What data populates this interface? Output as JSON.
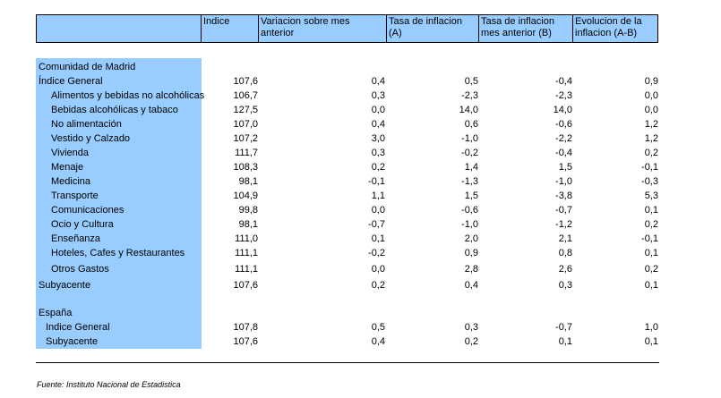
{
  "header": {
    "col0": "",
    "col1": "Indice",
    "col2": "Variacion sobre mes anterior",
    "col3": "Tasa de inflacion (A)",
    "col4": "Tasa de inflacion\nmes anterior (B)",
    "col5": "Evolucion de la\ninflacion (A-B)"
  },
  "madrid": {
    "title": "Comunidad de Madrid",
    "rows": [
      {
        "label": "Índice General",
        "v1": "107,6",
        "v2": "0,4",
        "v3": "0,5",
        "v4": "-0,4",
        "v5": "0,9"
      },
      {
        "label": "Alimentos y bebidas no alcohólicas",
        "v1": "106,7",
        "v2": "0,3",
        "v3": "-2,3",
        "v4": "-2,3",
        "v5": "0,0"
      },
      {
        "label": "Bebidas alcohólicas y tabaco",
        "v1": "127,5",
        "v2": "0,0",
        "v3": "14,0",
        "v4": "14,0",
        "v5": "0,0"
      },
      {
        "label": "No alimentación",
        "v1": "107,0",
        "v2": "0,4",
        "v3": "0,6",
        "v4": "-0,6",
        "v5": "1,2"
      },
      {
        "label": "Vestido y Calzado",
        "v1": "107,2",
        "v2": "3,0",
        "v3": "-1,0",
        "v4": "-2,2",
        "v5": "1,2"
      },
      {
        "label": "Vivienda",
        "v1": "111,7",
        "v2": "0,3",
        "v3": "-0,2",
        "v4": "-0,4",
        "v5": "0,2"
      },
      {
        "label": "Menaje",
        "v1": "108,3",
        "v2": "0,2",
        "v3": "1,4",
        "v4": "1,5",
        "v5": "-0,1"
      },
      {
        "label": "Medicina",
        "v1": "98,1",
        "v2": "-0,1",
        "v3": "-1,3",
        "v4": "-1,0",
        "v5": "-0,3"
      },
      {
        "label": "Transporte",
        "v1": "104,9",
        "v2": "1,1",
        "v3": "1,5",
        "v4": "-3,8",
        "v5": "5,3"
      },
      {
        "label": "Comunicaciones",
        "v1": "99,8",
        "v2": "0,0",
        "v3": "-0,6",
        "v4": "-0,7",
        "v5": "0,1"
      },
      {
        "label": "Ocio y Cultura",
        "v1": "98,1",
        "v2": "-0,7",
        "v3": "-1,0",
        "v4": "-1,2",
        "v5": "0,2"
      },
      {
        "label": "Enseñanza",
        "v1": "111,0",
        "v2": "0,1",
        "v3": "2,0",
        "v4": "2,1",
        "v5": "-0,1"
      },
      {
        "label": "Hoteles, Cafes y Restaurantes",
        "v1": "111,1",
        "v2": "-0,2",
        "v3": "0,9",
        "v4": "0,8",
        "v5": "0,1"
      },
      {
        "label": "Otros Gastos",
        "v1": "111,1",
        "v2": "0,0",
        "v3": "2,8",
        "v4": "2,6",
        "v5": "0,2"
      },
      {
        "label": "Subyacente",
        "v1": "107,6",
        "v2": "0,2",
        "v3": "0,4",
        "v4": "0,3",
        "v5": "0,1"
      }
    ]
  },
  "spain": {
    "title": "España",
    "rows": [
      {
        "label": "Indice General",
        "v1": "107,8",
        "v2": "0,5",
        "v3": "0,3",
        "v4": "-0,7",
        "v5": "1,0"
      },
      {
        "label": "Subyacente",
        "v1": "107,6",
        "v2": "0,4",
        "v3": "0,2",
        "v4": "0,1",
        "v5": "0,1"
      }
    ]
  },
  "footer": {
    "source": "Fuente: Instituto Nacional de Estadistica"
  }
}
